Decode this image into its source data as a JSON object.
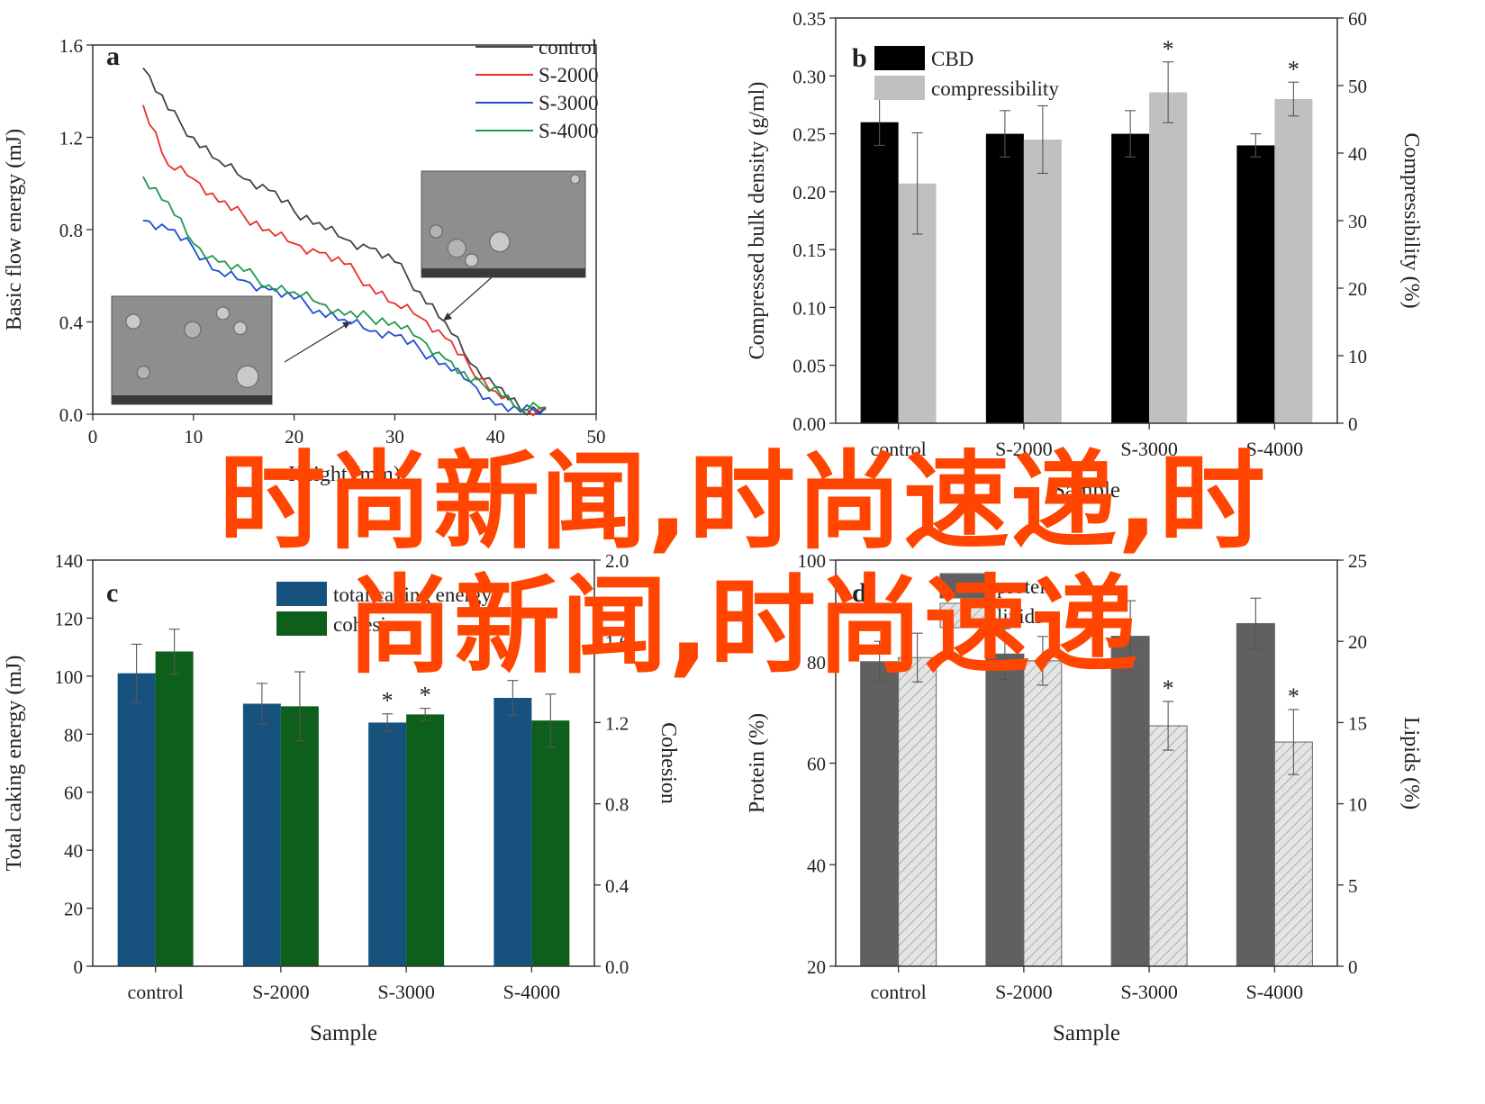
{
  "overlay": {
    "line1": "时尚新闻,时尚速递,时",
    "line2": "尚新闻,时尚速递",
    "color": "#ff4500"
  },
  "chart_data": [
    {
      "panel": "a",
      "type": "line",
      "xlabel": "Height (mm)",
      "ylabel": "Basic flow energy (mJ)",
      "xlim": [
        0,
        50
      ],
      "ylim": [
        0.0,
        1.6
      ],
      "xticks": [
        "0",
        "10",
        "20",
        "30",
        "40",
        "50"
      ],
      "yticks": [
        "0.0",
        "0.4",
        "0.8",
        "1.2",
        "1.6"
      ],
      "x_shared": [
        5,
        7.5,
        10,
        12.5,
        15,
        17.5,
        20,
        22.5,
        25,
        27.5,
        30,
        32.5,
        35,
        37.5,
        40,
        42.5,
        45
      ],
      "legend": "top-right",
      "series": [
        {
          "name": "control",
          "color": "#444444",
          "values": [
            1.5,
            1.32,
            1.2,
            1.1,
            1.02,
            0.97,
            0.88,
            0.83,
            0.76,
            0.72,
            0.66,
            0.53,
            0.4,
            0.22,
            0.12,
            0.02,
            0.03
          ]
        },
        {
          "name": "S-2000",
          "color": "#e8302a",
          "values": [
            1.34,
            1.08,
            1.02,
            0.92,
            0.86,
            0.8,
            0.74,
            0.7,
            0.65,
            0.56,
            0.48,
            0.42,
            0.33,
            0.2,
            0.1,
            0.02,
            0.02
          ]
        },
        {
          "name": "S-3000",
          "color": "#1f4fd1",
          "values": [
            0.84,
            0.8,
            0.72,
            0.62,
            0.58,
            0.54,
            0.5,
            0.45,
            0.41,
            0.36,
            0.34,
            0.28,
            0.22,
            0.14,
            0.04,
            0.01,
            0.03
          ]
        },
        {
          "name": "S-4000",
          "color": "#1e9a4e",
          "values": [
            1.03,
            0.92,
            0.74,
            0.66,
            0.62,
            0.56,
            0.53,
            0.48,
            0.43,
            0.42,
            0.4,
            0.33,
            0.24,
            0.14,
            0.12,
            0.02,
            0.03
          ]
        }
      ]
    },
    {
      "panel": "b",
      "type": "bar",
      "xlabel": "Sample",
      "ylabel": "Compressed bulk density (g/ml)",
      "ylabel_right": "Compressibility (%)",
      "categories": [
        "control",
        "S-2000",
        "S-3000",
        "S-4000"
      ],
      "ylim": [
        0.0,
        0.35
      ],
      "ylim_right": [
        0,
        60
      ],
      "yticks": [
        "0.00",
        "0.05",
        "0.10",
        "0.15",
        "0.20",
        "0.25",
        "0.30",
        "0.35"
      ],
      "yticks_right": [
        "0",
        "10",
        "20",
        "30",
        "40",
        "50",
        "60"
      ],
      "legend": "top-left",
      "series": [
        {
          "name": "CBD",
          "color": "#000000",
          "axis": "left",
          "values": [
            0.26,
            0.25,
            0.25,
            0.24
          ],
          "errors": [
            0.02,
            0.02,
            0.02,
            0.01
          ]
        },
        {
          "name": "compressibility",
          "color": "#c0c0c0",
          "axis": "right",
          "values": [
            35.5,
            42.0,
            49.0,
            48.0
          ],
          "errors": [
            7.5,
            5.0,
            4.5,
            2.5
          ]
        }
      ],
      "annotations": [
        {
          "text": "*",
          "category": "S-3000"
        },
        {
          "text": "*",
          "category": "S-4000"
        }
      ]
    },
    {
      "panel": "c",
      "type": "bar",
      "xlabel": "Sample",
      "ylabel": "Total caking energy (mJ)",
      "ylabel_right": "Cohesion",
      "categories": [
        "control",
        "S-2000",
        "S-3000",
        "S-4000"
      ],
      "ylim": [
        0,
        140
      ],
      "ylim_right": [
        0.0,
        2.0
      ],
      "yticks": [
        "0",
        "20",
        "40",
        "60",
        "80",
        "100",
        "120",
        "140"
      ],
      "yticks_right": [
        "0.0",
        "0.4",
        "0.8",
        "1.2",
        "1.6",
        "2.0"
      ],
      "legend": "top-left",
      "legend_labels": [
        "total caking energy",
        "cohesion"
      ],
      "series": [
        {
          "name": "total caking energy",
          "color": "#17527f",
          "axis": "left",
          "values": [
            101,
            90.5,
            84,
            92.5
          ],
          "errors": [
            10,
            7,
            3,
            6
          ]
        },
        {
          "name": "cohesion",
          "color": "#0e5e1c",
          "axis": "right",
          "values": [
            1.55,
            1.28,
            1.24,
            1.21
          ],
          "errors": [
            0.11,
            0.17,
            0.03,
            0.13
          ]
        }
      ],
      "annotations": [
        {
          "text": "*",
          "category": "S-3000",
          "series": 0
        },
        {
          "text": "*",
          "category": "S-3000",
          "series": 1
        }
      ]
    },
    {
      "panel": "d",
      "type": "bar",
      "xlabel": "Sample",
      "ylabel": "Protein (%)",
      "ylabel_right": "Lipids (%)",
      "categories": [
        "control",
        "S-2000",
        "S-3000",
        "S-4000"
      ],
      "ylim": [
        20,
        100
      ],
      "ylim_right": [
        0,
        25
      ],
      "yticks": [
        "20",
        "40",
        "60",
        "80",
        "100"
      ],
      "yticks_right": [
        "0",
        "5",
        "10",
        "15",
        "20",
        "25"
      ],
      "legend": "top-left",
      "series": [
        {
          "name": "protein",
          "color": "#606060",
          "axis": "left",
          "values": [
            80,
            81.5,
            85,
            87.5
          ],
          "errors": [
            4,
            5,
            7,
            5
          ]
        },
        {
          "name": "lipids",
          "color": "#d8d8d8",
          "axis": "right",
          "values": [
            19.0,
            18.8,
            14.8,
            13.8
          ],
          "errors": [
            1.5,
            1.5,
            1.5,
            2.0
          ]
        }
      ],
      "annotations": [
        {
          "text": "*",
          "category": "S-3000"
        },
        {
          "text": "*",
          "category": "S-4000"
        }
      ]
    }
  ]
}
